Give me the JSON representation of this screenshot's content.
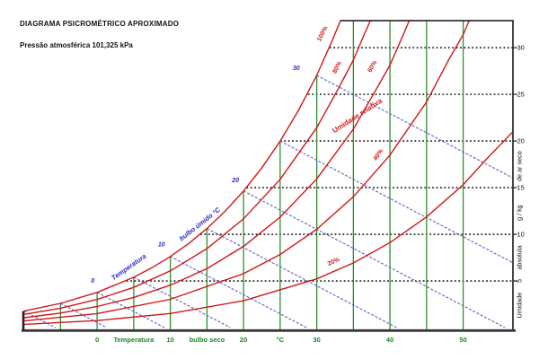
{
  "colors": {
    "rh": "#d01818",
    "wet_bulb": "#5c5ccf",
    "wb_label": "#2929c8",
    "dry_bulb": "#2f8f2f",
    "x_label": "#1c8a1c",
    "dotted": "#1a1a1a",
    "axis": "#333333",
    "text": "#111111",
    "background": "#ffffff"
  },
  "chart_data": {
    "type": "line",
    "title": "DIAGRAMA PSICROMÉTRICO APROXIMADO",
    "subtitle": "Pressão atmosférica 101,325 kPa",
    "xlabel": "Temperatura bulbo seco °C",
    "ylabel": "Umidade absoluta g / kg de ar seco",
    "xlim": [
      -10.2,
      56.8
    ],
    "ylim": [
      0,
      32.9
    ],
    "grid": true,
    "legend": "none",
    "rh_curves": [
      {
        "name": "20%",
        "rh": 20,
        "points": [
          [
            -10,
            0.35
          ],
          [
            0,
            0.75
          ],
          [
            10,
            1.51
          ],
          [
            20,
            2.88
          ],
          [
            30,
            5.22
          ],
          [
            35,
            6.93
          ],
          [
            40,
            9.11
          ],
          [
            45,
            11.86
          ],
          [
            50,
            15.31
          ],
          [
            53,
            17.9
          ],
          [
            56.8,
            21.0
          ]
        ]
      },
      {
        "name": "40%",
        "rh": 40,
        "points": [
          [
            -10,
            0.71
          ],
          [
            0,
            1.5
          ],
          [
            10,
            3.03
          ],
          [
            20,
            5.78
          ],
          [
            25,
            7.84
          ],
          [
            30,
            10.54
          ],
          [
            35,
            14.02
          ],
          [
            40,
            18.49
          ],
          [
            45,
            24.18
          ],
          [
            48,
            28.68
          ],
          [
            50,
            31.4
          ],
          [
            51.2,
            33.6
          ]
        ]
      },
      {
        "name": "60%",
        "rh": 60,
        "points": [
          [
            -10,
            1.06
          ],
          [
            -5,
            1.56
          ],
          [
            0,
            2.26
          ],
          [
            5,
            3.23
          ],
          [
            10,
            4.55
          ],
          [
            15,
            6.33
          ],
          [
            20,
            8.71
          ],
          [
            25,
            11.84
          ],
          [
            30,
            15.94
          ],
          [
            35,
            21.27
          ],
          [
            38,
            25.37
          ],
          [
            40,
            28.14
          ],
          [
            42,
            31.72
          ],
          [
            43,
            33.6
          ]
        ]
      },
      {
        "name": "80%",
        "rh": 80,
        "points": [
          [
            -10,
            1.41
          ],
          [
            -5,
            2.08
          ],
          [
            0,
            3.02
          ],
          [
            5,
            4.31
          ],
          [
            10,
            6.08
          ],
          [
            15,
            8.47
          ],
          [
            20,
            11.66
          ],
          [
            25,
            15.89
          ],
          [
            30,
            21.43
          ],
          [
            33,
            25.68
          ],
          [
            35,
            28.68
          ],
          [
            36.5,
            31.45
          ],
          [
            37.6,
            33.4
          ]
        ]
      },
      {
        "name": "100%",
        "rh": 100,
        "points": [
          [
            -10,
            1.77
          ],
          [
            -5,
            2.6
          ],
          [
            0,
            3.77
          ],
          [
            5,
            5.4
          ],
          [
            7.5,
            6.42
          ],
          [
            10,
            7.62
          ],
          [
            12.5,
            9.01
          ],
          [
            15,
            10.62
          ],
          [
            17.5,
            12.49
          ],
          [
            20,
            14.64
          ],
          [
            22.5,
            17.13
          ],
          [
            25,
            19.99
          ],
          [
            27.5,
            23.27
          ],
          [
            30,
            27.03
          ],
          [
            31,
            28.8
          ],
          [
            32,
            30.56
          ],
          [
            33,
            32.43
          ],
          [
            33.5,
            33.4
          ]
        ]
      }
    ],
    "wet_bulb_lines": [
      {
        "twb": -10,
        "points": [
          [
            -10,
            1.77
          ],
          [
            -5.7,
            0
          ]
        ]
      },
      {
        "twb": -5,
        "points": [
          [
            -5,
            2.6
          ],
          [
            1.3,
            0
          ]
        ]
      },
      {
        "twb": 0,
        "points": [
          [
            0,
            3.77
          ],
          [
            9.2,
            0
          ]
        ]
      },
      {
        "twb": 5,
        "points": [
          [
            5,
            5.4
          ],
          [
            18.2,
            0
          ]
        ]
      },
      {
        "twb": 10,
        "points": [
          [
            10,
            7.62
          ],
          [
            28.6,
            0
          ]
        ]
      },
      {
        "twb": 15,
        "points": [
          [
            15,
            10.62
          ],
          [
            40.9,
            0
          ]
        ]
      },
      {
        "twb": 20,
        "points": [
          [
            20,
            14.64
          ],
          [
            55.7,
            0
          ]
        ]
      },
      {
        "twb": 25,
        "points": [
          [
            25,
            19.99
          ],
          [
            56.8,
            6.95
          ]
        ]
      },
      {
        "twb": 30,
        "points": [
          [
            30,
            27.03
          ],
          [
            56.8,
            16.04
          ]
        ]
      }
    ],
    "dry_bulb_gridlines": [
      {
        "t": -5,
        "w_top": 2.6
      },
      {
        "t": 0,
        "w_top": 3.77
      },
      {
        "t": 5,
        "w_top": 5.4
      },
      {
        "t": 10,
        "w_top": 7.62
      },
      {
        "t": 15,
        "w_top": 10.62
      },
      {
        "t": 20,
        "w_top": 14.64
      },
      {
        "t": 25,
        "w_top": 19.99
      },
      {
        "t": 30,
        "w_top": 27.03
      },
      {
        "t": 35,
        "w_top": 32.9
      },
      {
        "t": 40,
        "w_top": 32.9
      },
      {
        "t": 45,
        "w_top": 32.9
      },
      {
        "t": 50,
        "w_top": 32.9
      }
    ],
    "humidity_gridlines": [
      {
        "w": 5,
        "t_start": 4.0
      },
      {
        "w": 10,
        "t_start": 14.1
      },
      {
        "w": 15,
        "t_start": 20.4
      },
      {
        "w": 20,
        "t_start": 25.0
      },
      {
        "w": 25,
        "t_start": 28.8
      },
      {
        "w": 30,
        "t_start": 31.75
      }
    ],
    "x_axis_labels": [
      {
        "t": 0,
        "text": "0"
      },
      {
        "t": 5,
        "text": "Temperatura"
      },
      {
        "t": 10,
        "text": "10"
      },
      {
        "t": 15,
        "text": "bulbo seco"
      },
      {
        "t": 20,
        "text": "20"
      },
      {
        "t": 25,
        "text": "°C"
      },
      {
        "t": 30,
        "text": "30"
      },
      {
        "t": 40,
        "text": "40"
      },
      {
        "t": 50,
        "text": "50"
      }
    ],
    "y_axis_labels": [
      {
        "w": 2.4,
        "text": "Umidade",
        "rotated": true
      },
      {
        "w": 5,
        "text": "5",
        "rotated": true
      },
      {
        "w": 7.5,
        "text": "absoluta",
        "rotated": true
      },
      {
        "w": 10,
        "text": "10"
      },
      {
        "w": 12.3,
        "text": "g / kg",
        "rotated": true
      },
      {
        "w": 15,
        "text": "15"
      },
      {
        "w": 17.3,
        "text": "de ar seco",
        "rotated": true
      },
      {
        "w": 20,
        "text": "20"
      },
      {
        "w": 25,
        "text": "25"
      },
      {
        "w": 30,
        "text": "30"
      }
    ],
    "annotations": [
      {
        "text": "100%",
        "t": 31.0,
        "w": 31.4,
        "angle": -63,
        "color": "rh"
      },
      {
        "text": "80%",
        "t": 33.0,
        "w": 27.8,
        "angle": -63,
        "color": "rh"
      },
      {
        "text": "60%",
        "t": 37.8,
        "w": 27.9,
        "angle": -60,
        "color": "rh"
      },
      {
        "text": "40%",
        "t": 38.6,
        "w": 18.4,
        "angle": -55,
        "color": "rh"
      },
      {
        "text": "20%",
        "t": 32.4,
        "w": 6.9,
        "angle": -25,
        "color": "rh"
      },
      {
        "text": "Umidade relativa",
        "t": 35.7,
        "w": 22.5,
        "angle": -33,
        "color": "rh",
        "size": 8
      },
      {
        "text": "Temperatura",
        "t": 4.5,
        "w": 6.3,
        "angle": -35,
        "color": "wb",
        "italic": true,
        "size": 7.5
      },
      {
        "text": "bulbo úmido °C",
        "t": 14.2,
        "w": 10.9,
        "angle": -38,
        "color": "wb",
        "italic": true,
        "size": 7.5
      },
      {
        "text": "0",
        "t": -0.6,
        "w": 4.8,
        "color": "wb",
        "italic": true
      },
      {
        "text": "10",
        "t": 8.8,
        "w": 8.7,
        "color": "wb",
        "italic": true
      },
      {
        "text": "20",
        "t": 18.9,
        "w": 15.6,
        "color": "wb",
        "italic": true
      },
      {
        "text": "30",
        "t": 27.2,
        "w": 27.6,
        "color": "wb",
        "italic": true
      }
    ]
  }
}
